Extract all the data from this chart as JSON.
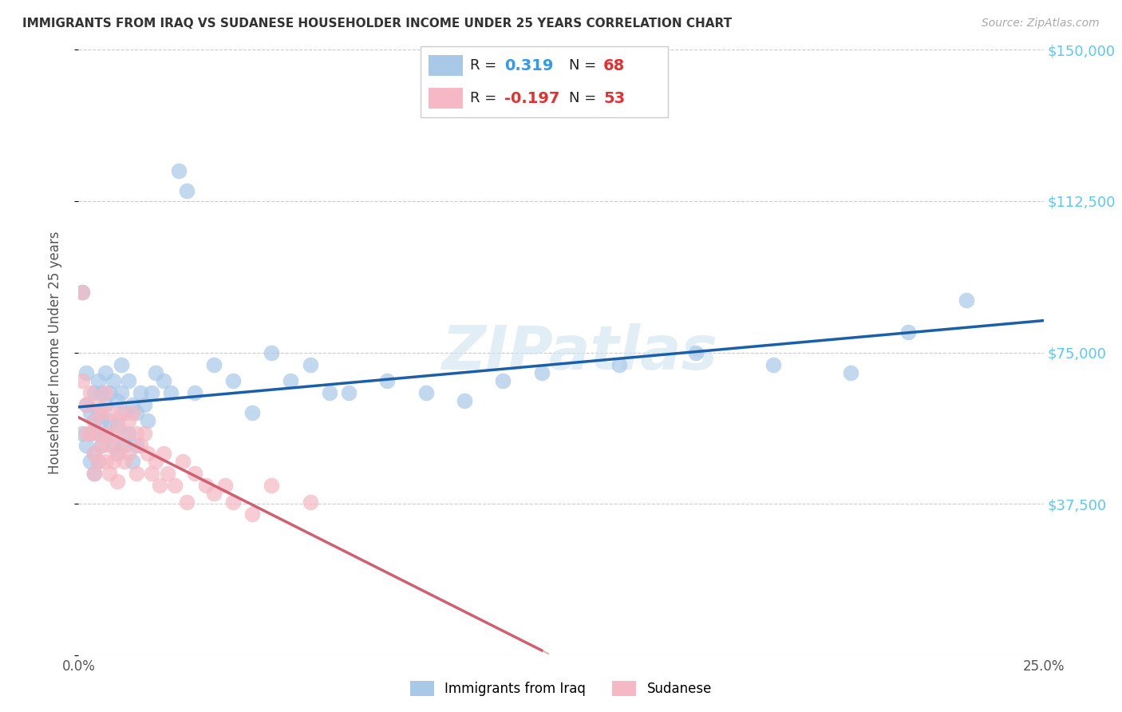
{
  "title": "IMMIGRANTS FROM IRAQ VS SUDANESE HOUSEHOLDER INCOME UNDER 25 YEARS CORRELATION CHART",
  "source": "Source: ZipAtlas.com",
  "ylabel": "Householder Income Under 25 years",
  "x_min": 0.0,
  "x_max": 0.25,
  "y_min": 0,
  "y_max": 150000,
  "x_ticks": [
    0.0,
    0.05,
    0.1,
    0.15,
    0.2,
    0.25
  ],
  "x_tick_labels": [
    "0.0%",
    "",
    "",
    "",
    "",
    "25.0%"
  ],
  "y_ticks": [
    0,
    37500,
    75000,
    112500,
    150000
  ],
  "y_tick_labels_right": [
    "",
    "$37,500",
    "$75,000",
    "$112,500",
    "$150,000"
  ],
  "iraq_color": "#a8c8e8",
  "iraq_line_color": "#1a5fa8",
  "sudan_color": "#f5b8c4",
  "sudan_line_color": "#d06070",
  "iraq_R": "0.319",
  "iraq_N": "68",
  "sudan_R": "-0.197",
  "sudan_N": "53",
  "legend1_label": "Immigrants from Iraq",
  "legend2_label": "Sudanese",
  "watermark": "ZIPatlas",
  "iraq_x": [
    0.001,
    0.001,
    0.002,
    0.002,
    0.002,
    0.003,
    0.003,
    0.003,
    0.004,
    0.004,
    0.004,
    0.004,
    0.005,
    0.005,
    0.005,
    0.005,
    0.006,
    0.006,
    0.006,
    0.007,
    0.007,
    0.007,
    0.008,
    0.008,
    0.009,
    0.009,
    0.01,
    0.01,
    0.01,
    0.011,
    0.011,
    0.012,
    0.012,
    0.013,
    0.013,
    0.014,
    0.014,
    0.015,
    0.015,
    0.016,
    0.017,
    0.018,
    0.019,
    0.02,
    0.022,
    0.024,
    0.026,
    0.028,
    0.03,
    0.035,
    0.04,
    0.045,
    0.05,
    0.055,
    0.06,
    0.065,
    0.07,
    0.08,
    0.09,
    0.1,
    0.11,
    0.12,
    0.14,
    0.16,
    0.18,
    0.2,
    0.215,
    0.23
  ],
  "iraq_y": [
    55000,
    90000,
    62000,
    70000,
    52000,
    60000,
    55000,
    48000,
    65000,
    58000,
    50000,
    45000,
    68000,
    60000,
    55000,
    48000,
    65000,
    58000,
    52000,
    70000,
    62000,
    55000,
    65000,
    58000,
    68000,
    52000,
    63000,
    57000,
    50000,
    72000,
    65000,
    60000,
    52000,
    68000,
    55000,
    62000,
    48000,
    60000,
    52000,
    65000,
    62000,
    58000,
    65000,
    70000,
    68000,
    65000,
    120000,
    115000,
    65000,
    72000,
    68000,
    60000,
    75000,
    68000,
    72000,
    65000,
    65000,
    68000,
    65000,
    63000,
    68000,
    70000,
    72000,
    75000,
    72000,
    70000,
    80000,
    88000
  ],
  "sudan_x": [
    0.001,
    0.001,
    0.002,
    0.002,
    0.003,
    0.003,
    0.004,
    0.004,
    0.004,
    0.005,
    0.005,
    0.005,
    0.006,
    0.006,
    0.007,
    0.007,
    0.007,
    0.008,
    0.008,
    0.008,
    0.009,
    0.009,
    0.01,
    0.01,
    0.01,
    0.011,
    0.011,
    0.012,
    0.012,
    0.013,
    0.013,
    0.014,
    0.015,
    0.015,
    0.016,
    0.017,
    0.018,
    0.019,
    0.02,
    0.021,
    0.022,
    0.023,
    0.025,
    0.027,
    0.028,
    0.03,
    0.033,
    0.035,
    0.038,
    0.04,
    0.045,
    0.05,
    0.06
  ],
  "sudan_y": [
    68000,
    90000,
    62000,
    55000,
    65000,
    55000,
    58000,
    50000,
    45000,
    62000,
    55000,
    48000,
    60000,
    52000,
    65000,
    55000,
    48000,
    60000,
    52000,
    45000,
    55000,
    48000,
    58000,
    50000,
    43000,
    60000,
    52000,
    55000,
    48000,
    58000,
    50000,
    60000,
    55000,
    45000,
    52000,
    55000,
    50000,
    45000,
    48000,
    42000,
    50000,
    45000,
    42000,
    48000,
    38000,
    45000,
    42000,
    40000,
    42000,
    38000,
    35000,
    42000,
    38000
  ]
}
